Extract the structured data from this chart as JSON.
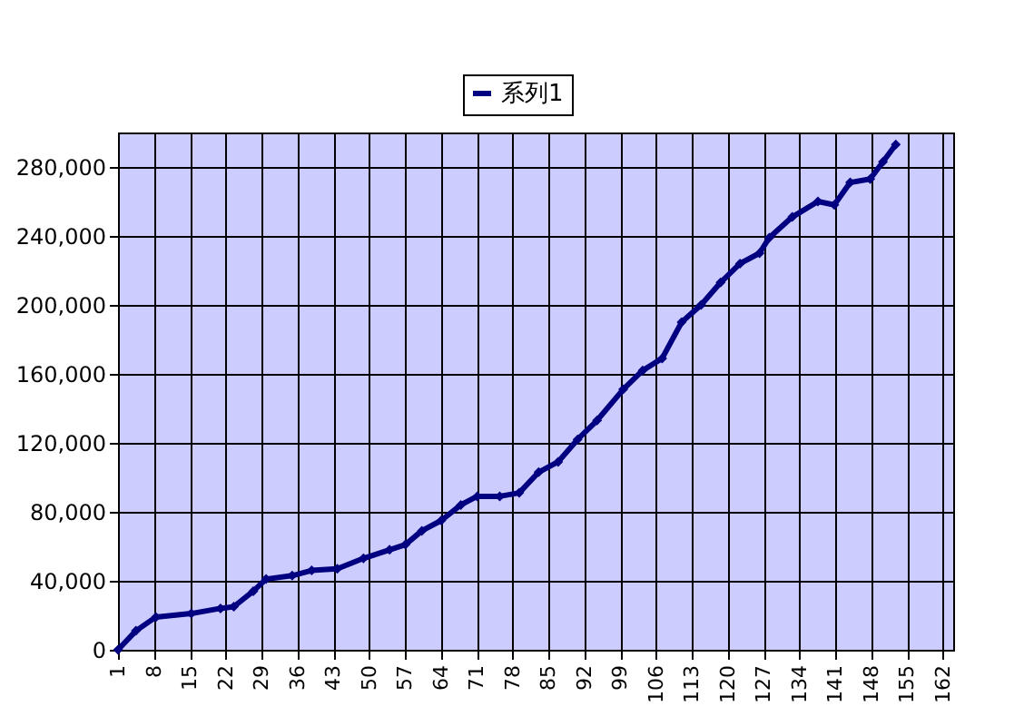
{
  "chart_data": {
    "type": "line",
    "x": [
      1,
      4.5,
      8.4,
      15.3,
      21,
      23.6,
      27.4,
      29.9,
      35,
      38.8,
      43.8,
      48.9,
      54,
      57.1,
      60.3,
      64.1,
      67.9,
      71.1,
      75.5,
      79.3,
      83.1,
      86.9,
      90.7,
      94.5,
      99.6,
      103.4,
      107.2,
      111,
      114.8,
      118.6,
      122.4,
      126.2,
      128.1,
      132.6,
      137.6,
      140.8,
      143.9,
      147.8,
      150.3,
      152.8
    ],
    "series": [
      {
        "name": "系列1",
        "color": "#000080",
        "values": [
          0,
          11000,
          19000,
          21000,
          24000,
          25000,
          34000,
          41000,
          43000,
          46000,
          47000,
          53000,
          58000,
          61000,
          69000,
          75000,
          84000,
          89000,
          89000,
          91000,
          103000,
          109000,
          122000,
          133000,
          151000,
          162000,
          169000,
          190000,
          200000,
          213000,
          224000,
          230000,
          239000,
          251000,
          260000,
          258000,
          271000,
          273000,
          283000,
          293000
        ]
      }
    ],
    "xlim": [
      1,
      164
    ],
    "xticks": [
      1,
      8,
      15,
      22,
      29,
      36,
      43,
      50,
      57,
      64,
      71,
      78,
      85,
      92,
      99,
      106,
      113,
      120,
      127,
      134,
      141,
      148,
      155,
      162
    ],
    "ylim": [
      0,
      300000
    ],
    "yticks": [
      0,
      {
        "value": 40000,
        "label": "40,000"
      },
      {
        "value": 80000,
        "label": "80,000"
      },
      {
        "value": 120000,
        "label": "120,000"
      },
      {
        "value": 160000,
        "label": "160,000"
      },
      {
        "value": 200000,
        "label": "200,000"
      },
      {
        "value": 240000,
        "label": "240,000"
      },
      {
        "value": 280000,
        "label": "280,000"
      }
    ],
    "grid": true,
    "legend": "top",
    "marker": "diamond",
    "line_style": "solid"
  }
}
